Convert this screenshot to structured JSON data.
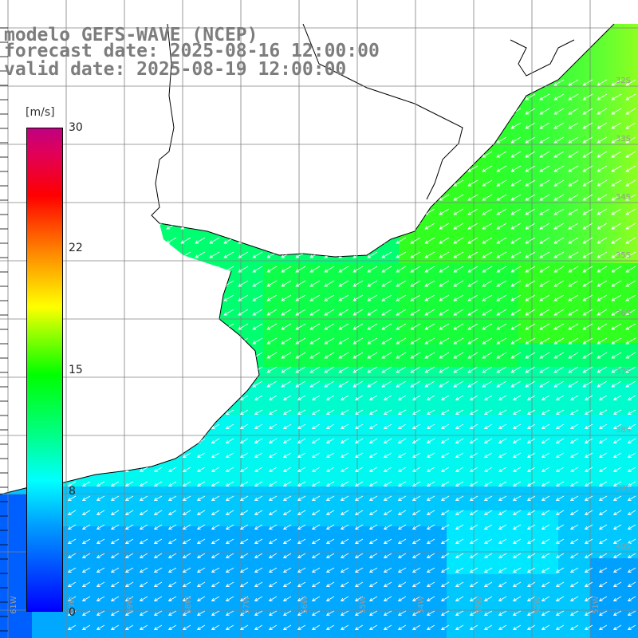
{
  "header": {
    "line1": "modelo GEFS-WAVE (NCEP)",
    "line2": "forecast date: 2025-08-16 12:00:00",
    "line3": "valid date: 2025-08-19 12:00:00"
  },
  "colorbar": {
    "unit": "[m/s]",
    "labels": [
      "30",
      "22",
      "15",
      "8",
      "0"
    ],
    "min": 0,
    "max": 30,
    "colors": [
      "#0000ff",
      "#00a0ff",
      "#00ffff",
      "#00ff80",
      "#00ff00",
      "#a0ff00",
      "#ffff00",
      "#ffa000",
      "#ff0000",
      "#c00080"
    ]
  },
  "map": {
    "lat_labels": [
      "32S",
      "33S",
      "34S",
      "35S",
      "36S",
      "37S",
      "38S",
      "39S",
      "40S"
    ],
    "lon_labels": [
      "61W",
      "60W",
      "59W",
      "58W",
      "57W",
      "56W",
      "55W",
      "54W",
      "53W",
      "52W",
      "51W"
    ],
    "wind_direction": "toward southwest",
    "land_color": "#ffffff",
    "grid_color": "#808080"
  }
}
